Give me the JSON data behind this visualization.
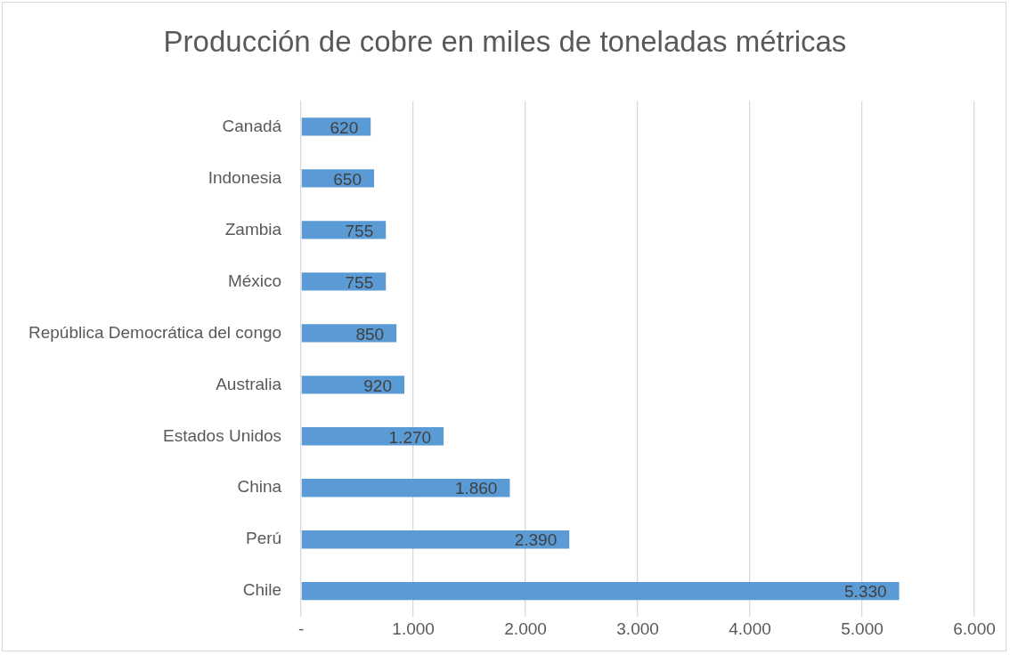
{
  "chart_data": {
    "type": "bar",
    "orientation": "horizontal",
    "title": "Producción de cobre en miles de toneladas métricas",
    "categories": [
      "Canadá",
      "Indonesia",
      "Zambia",
      "México",
      "República Democrática del congo",
      "Australia",
      "Estados Unidos",
      "China",
      "Perú",
      "Chile"
    ],
    "values": [
      620,
      650,
      755,
      755,
      850,
      920,
      1270,
      1860,
      2390,
      5330
    ],
    "value_labels": [
      "620",
      "650",
      "755",
      "755",
      "850",
      "920",
      "1.270",
      "1.860",
      "2.390",
      "5.330"
    ],
    "color": "#5b9bd5",
    "xlim": [
      0,
      6000
    ],
    "xticks": [
      {
        "value": 0,
        "label": "-"
      },
      {
        "value": 1000,
        "label": "1.000"
      },
      {
        "value": 2000,
        "label": "2.000"
      },
      {
        "value": 3000,
        "label": "3.000"
      },
      {
        "value": 4000,
        "label": "4.000"
      },
      {
        "value": 5000,
        "label": "5.000"
      },
      {
        "value": 6000,
        "label": "6.000"
      }
    ],
    "grid": "x",
    "legend": false
  }
}
